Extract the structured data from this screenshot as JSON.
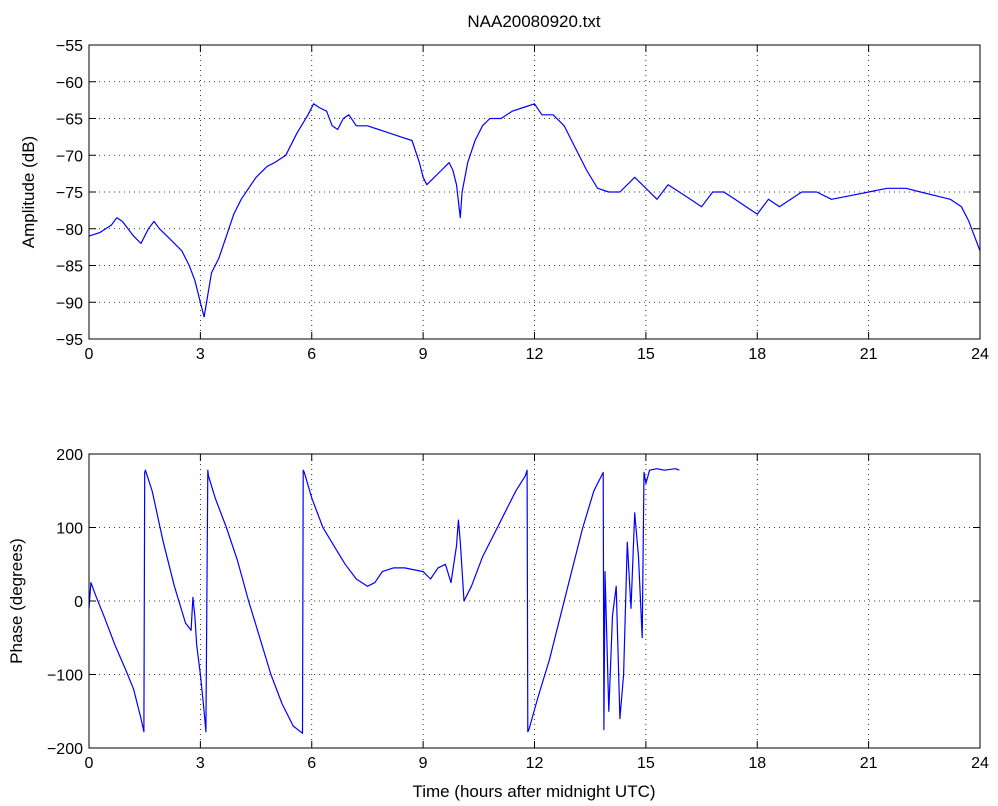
{
  "figure": {
    "title": "NAA20080920.txt"
  },
  "chart_data": [
    {
      "type": "line",
      "title": "NAA20080920.txt",
      "xlabel": "",
      "ylabel": "Amplitude (dB)",
      "xlim": [
        0,
        24
      ],
      "ylim": [
        -95,
        -55
      ],
      "xticks": [
        "0",
        "3",
        "6",
        "9",
        "12",
        "15",
        "18",
        "21",
        "24"
      ],
      "yticks": [
        "-55",
        "-60",
        "-65",
        "-70",
        "-75",
        "-80",
        "-85",
        "-90",
        "-95"
      ],
      "grid": true,
      "line_color": "#0000ff",
      "series": [
        {
          "x": [
            0,
            0.3,
            0.6,
            0.75,
            0.9,
            1.2,
            1.4,
            1.6,
            1.75,
            1.9,
            2.1,
            2.3,
            2.5,
            2.7,
            2.85,
            2.95,
            3.05,
            3.1,
            3.2,
            3.3,
            3.5,
            3.7,
            3.9,
            4.1,
            4.3,
            4.5,
            4.8,
            5.0,
            5.3,
            5.6,
            5.9,
            6.05,
            6.2,
            6.4,
            6.55,
            6.7,
            6.85,
            7.0,
            7.2,
            7.5,
            7.8,
            8.1,
            8.4,
            8.7,
            8.9,
            9.0,
            9.1,
            9.3,
            9.5,
            9.7,
            9.8,
            9.9,
            10.0,
            10.05,
            10.2,
            10.4,
            10.6,
            10.8,
            11.1,
            11.4,
            11.7,
            12.0,
            12.2,
            12.5,
            12.8,
            13.1,
            13.4,
            13.7,
            14.0,
            14.3,
            14.7,
            15.0,
            15.3,
            15.6,
            15.9,
            16.2,
            16.5,
            16.8,
            17.1,
            17.4,
            17.7,
            18.0,
            18.3,
            18.6,
            18.9,
            19.2,
            19.6,
            20.0,
            20.5,
            21.0,
            21.5,
            22.0,
            22.4,
            22.8,
            23.2,
            23.5,
            23.7,
            23.85,
            24.0
          ],
          "y": [
            -81,
            -80.5,
            -79.5,
            -78.5,
            -79,
            -81,
            -82,
            -80,
            -79,
            -80,
            -81,
            -82,
            -83,
            -85,
            -87,
            -89,
            -91,
            -92,
            -89,
            -86,
            -84,
            -81,
            -78,
            -76,
            -74.5,
            -73,
            -71.5,
            -71,
            -70,
            -67,
            -64.5,
            -63,
            -63.5,
            -64,
            -66,
            -66.5,
            -65,
            -64.5,
            -66,
            -66,
            -66.5,
            -67,
            -67.5,
            -68,
            -71,
            -73,
            -74,
            -73,
            -72,
            -71,
            -72,
            -74,
            -78.5,
            -75,
            -71,
            -68,
            -66,
            -65,
            -65,
            -64,
            -63.5,
            -63,
            -64.5,
            -64.5,
            -66,
            -69,
            -72,
            -74.5,
            -75,
            -75,
            -73,
            -74.5,
            -76,
            -74,
            -75,
            -76,
            -77,
            -75,
            -75,
            -76,
            -77,
            -78,
            -76,
            -77,
            -76,
            -75,
            -75,
            -76,
            -75.5,
            -75,
            -74.5,
            -74.5,
            -75,
            -75.5,
            -76,
            -77,
            -79,
            -81,
            -83
          ]
        }
      ]
    },
    {
      "type": "line",
      "title": "",
      "xlabel": "Time (hours after midnight UTC)",
      "ylabel": "Phase (degrees)",
      "xlim": [
        0,
        24
      ],
      "ylim": [
        -200,
        200
      ],
      "xticks": [
        "0",
        "3",
        "6",
        "9",
        "12",
        "15",
        "18",
        "21",
        "24"
      ],
      "yticks": [
        "200",
        "100",
        "0",
        "-100",
        "-200"
      ],
      "grid": true,
      "line_color": "#0000ff",
      "series": [
        {
          "x": [
            0,
            0.05,
            0.2,
            0.4,
            0.7,
            1.0,
            1.2,
            1.4,
            1.48,
            1.5,
            1.52,
            1.7,
            2.0,
            2.3,
            2.6,
            2.75,
            2.8,
            2.85,
            2.9,
            3.0,
            3.1,
            3.15,
            3.2,
            3.22,
            3.4,
            3.7,
            4.0,
            4.3,
            4.6,
            4.9,
            5.2,
            5.5,
            5.75,
            5.77,
            5.8,
            6.0,
            6.3,
            6.6,
            6.9,
            7.2,
            7.5,
            7.7,
            7.9,
            8.2,
            8.5,
            8.8,
            9.0,
            9.2,
            9.4,
            9.6,
            9.75,
            9.9,
            9.95,
            10.0,
            10.1,
            10.3,
            10.6,
            10.9,
            11.2,
            11.5,
            11.75,
            11.8,
            11.82,
            11.85,
            12.1,
            12.4,
            12.7,
            13.0,
            13.3,
            13.6,
            13.85,
            13.87,
            13.9,
            14.0,
            14.1,
            14.2,
            14.3,
            14.4,
            14.5,
            14.6,
            14.7,
            14.8,
            14.9,
            14.95,
            15.0,
            15.1,
            15.3,
            15.5,
            15.8,
            15.9
          ],
          "y": [
            -10,
            25,
            5,
            -20,
            -60,
            -95,
            -120,
            -160,
            -178,
            175,
            178,
            150,
            80,
            20,
            -30,
            -40,
            5,
            -20,
            -60,
            -100,
            -150,
            -178,
            178,
            170,
            140,
            100,
            55,
            0,
            -50,
            -100,
            -140,
            -170,
            -180,
            178,
            175,
            140,
            100,
            75,
            50,
            30,
            20,
            25,
            40,
            45,
            45,
            42,
            40,
            30,
            45,
            50,
            25,
            75,
            110,
            80,
            0,
            20,
            60,
            90,
            120,
            150,
            170,
            178,
            -178,
            -175,
            -130,
            -80,
            -20,
            40,
            100,
            150,
            175,
            -175,
            40,
            -150,
            -20,
            20,
            -160,
            -100,
            80,
            -10,
            120,
            60,
            -50,
            175,
            160,
            178,
            180,
            178,
            180,
            178
          ]
        }
      ]
    }
  ]
}
